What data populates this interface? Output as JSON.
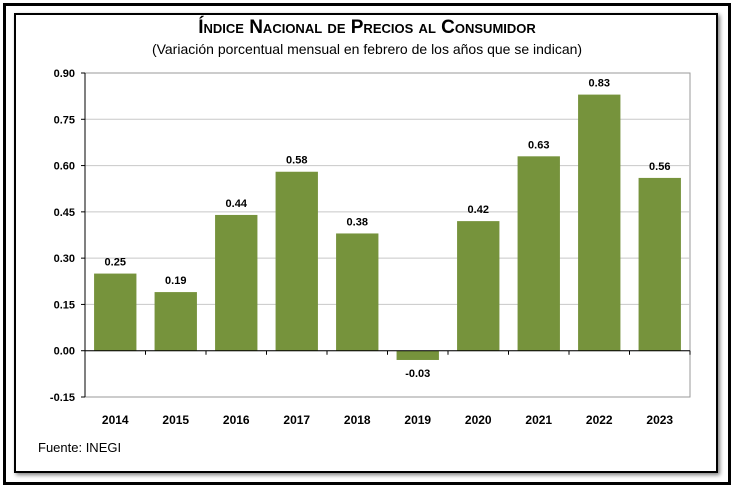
{
  "chart_data": {
    "type": "bar",
    "title": "Índice Nacional de Precios al Consumidor",
    "subtitle": "(Variación porcentual mensual en febrero de los años que se indican)",
    "categories": [
      "2014",
      "2015",
      "2016",
      "2017",
      "2018",
      "2019",
      "2020",
      "2021",
      "2022",
      "2023"
    ],
    "values": [
      0.25,
      0.19,
      0.44,
      0.58,
      0.38,
      -0.03,
      0.42,
      0.63,
      0.83,
      0.56
    ],
    "value_labels": [
      "0.25",
      "0.19",
      "0.44",
      "0.58",
      "0.38",
      "-0.03",
      "0.42",
      "0.63",
      "0.83",
      "0.56"
    ],
    "y_ticks": [
      "-0.15",
      "0.00",
      "0.15",
      "0.30",
      "0.45",
      "0.60",
      "0.75",
      "0.90"
    ],
    "y_tick_values": [
      -0.15,
      0,
      0.15,
      0.3,
      0.45,
      0.6,
      0.75,
      0.9
    ],
    "ylim": [
      -0.15,
      0.9
    ],
    "grid": true,
    "bar_color": "#76933c",
    "source": "Fuente: INEGI"
  }
}
